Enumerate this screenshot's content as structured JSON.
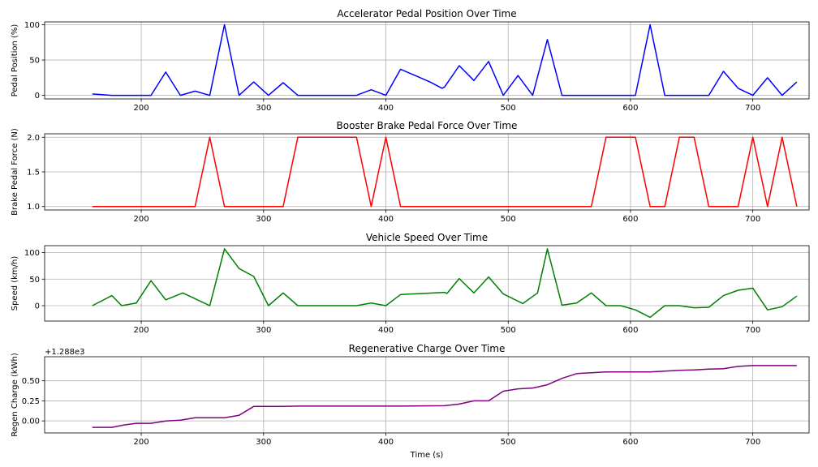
{
  "chart_data": [
    {
      "type": "line",
      "title": "Accelerator Pedal Position Over Time",
      "xlabel": "",
      "ylabel": "Pedal Position (%)",
      "color": "#0000ff",
      "xlim": [
        121,
        746
      ],
      "ylim": [
        -5,
        104
      ],
      "xticks": [
        200,
        300,
        400,
        500,
        600,
        700
      ],
      "yticks": [
        0,
        50,
        100
      ],
      "ytick_labels": [
        "0",
        "50",
        "100"
      ],
      "offset_text": "",
      "grid": true,
      "x": [
        160,
        176,
        192,
        208,
        220,
        232,
        244,
        256,
        268,
        280,
        292,
        304,
        316,
        328,
        340,
        352,
        364,
        376,
        388,
        400,
        412,
        424,
        436,
        446,
        448,
        460,
        472,
        484,
        496,
        508,
        520,
        532,
        544,
        556,
        568,
        580,
        592,
        604,
        616,
        628,
        640,
        652,
        664,
        676,
        688,
        700,
        712,
        724,
        736
      ],
      "y": [
        2,
        0,
        0,
        0,
        33,
        0,
        6,
        0,
        100,
        0,
        19,
        0,
        18,
        0,
        0,
        0,
        0,
        0,
        8,
        0,
        37,
        28,
        19,
        10,
        12,
        42,
        21,
        48,
        0,
        28,
        0,
        79,
        0,
        0,
        0,
        0,
        0,
        0,
        100,
        0,
        0,
        0,
        0,
        34,
        10,
        0,
        25,
        0,
        19
      ]
    },
    {
      "type": "line",
      "title": "Booster Brake Pedal Force Over Time",
      "xlabel": "",
      "ylabel": "Brake Pedal Force (N)",
      "color": "#ff0000",
      "xlim": [
        121,
        746
      ],
      "ylim": [
        0.95,
        2.05
      ],
      "xticks": [
        200,
        300,
        400,
        500,
        600,
        700
      ],
      "yticks": [
        1.0,
        1.5,
        2.0
      ],
      "ytick_labels": [
        "1.0",
        "1.5",
        "2.0"
      ],
      "offset_text": "",
      "grid": true,
      "x": [
        160,
        244,
        256,
        268,
        316,
        328,
        340,
        376,
        388,
        400,
        412,
        568,
        580,
        592,
        604,
        616,
        628,
        640,
        652,
        664,
        688,
        700,
        712,
        724,
        736
      ],
      "y": [
        1,
        1,
        2,
        1,
        1,
        2,
        2,
        2,
        1,
        2,
        1,
        1,
        2,
        2,
        2,
        1,
        1,
        2,
        2,
        1,
        1,
        2,
        1,
        2,
        1
      ]
    },
    {
      "type": "line",
      "title": "Vehicle Speed Over Time",
      "xlabel": "",
      "ylabel": "Speed (km/h)",
      "color": "#008000",
      "xlim": [
        121,
        746
      ],
      "ylim": [
        -29,
        113
      ],
      "xticks": [
        200,
        300,
        400,
        500,
        600,
        700
      ],
      "yticks": [
        0,
        50,
        100
      ],
      "ytick_labels": [
        "0",
        "50",
        "100"
      ],
      "offset_text": "",
      "grid": true,
      "x": [
        160,
        176,
        184,
        196,
        208,
        220,
        234,
        256,
        268,
        280,
        292,
        304,
        316,
        328,
        340,
        376,
        388,
        400,
        412,
        448,
        450,
        460,
        472,
        484,
        496,
        512,
        524,
        532,
        544,
        556,
        568,
        580,
        592,
        604,
        616,
        628,
        640,
        652,
        664,
        676,
        688,
        700,
        712,
        724,
        736
      ],
      "y": [
        0,
        19,
        0,
        5,
        47,
        11,
        24,
        0,
        107,
        70,
        55,
        0,
        24,
        0,
        0,
        0,
        5,
        0,
        21,
        25,
        23,
        51,
        24,
        54,
        22,
        4,
        24,
        107,
        1,
        5,
        24,
        0,
        0,
        -8,
        -22,
        0,
        0,
        -4,
        -3,
        19,
        29,
        33,
        -8,
        -2,
        18
      ]
    },
    {
      "type": "line",
      "title": "Regenerative Charge Over Time",
      "xlabel": "Time (s)",
      "ylabel": "Regen Charge (kWh)",
      "color": "#800080",
      "xlim": [
        121,
        746
      ],
      "ylim": [
        -0.15,
        0.8
      ],
      "xticks": [
        200,
        300,
        400,
        500,
        600,
        700
      ],
      "yticks": [
        0.0,
        0.25,
        0.5
      ],
      "ytick_labels": [
        "0.00",
        "0.25",
        "0.50"
      ],
      "offset_text": "+1.288e3",
      "grid": true,
      "x": [
        160,
        176,
        186,
        196,
        208,
        220,
        232,
        244,
        256,
        268,
        280,
        292,
        304,
        316,
        328,
        412,
        448,
        460,
        472,
        484,
        496,
        508,
        520,
        532,
        544,
        556,
        568,
        580,
        592,
        604,
        616,
        628,
        640,
        652,
        664,
        676,
        688,
        700,
        712,
        724,
        736
      ],
      "y": [
        -0.08,
        -0.08,
        -0.05,
        -0.03,
        -0.03,
        0.0,
        0.01,
        0.04,
        0.04,
        0.04,
        0.07,
        0.18,
        0.18,
        0.18,
        0.185,
        0.185,
        0.19,
        0.21,
        0.25,
        0.25,
        0.37,
        0.4,
        0.41,
        0.45,
        0.53,
        0.59,
        0.6,
        0.61,
        0.61,
        0.61,
        0.61,
        0.62,
        0.63,
        0.635,
        0.645,
        0.65,
        0.68,
        0.69,
        0.69,
        0.69,
        0.69
      ]
    }
  ]
}
